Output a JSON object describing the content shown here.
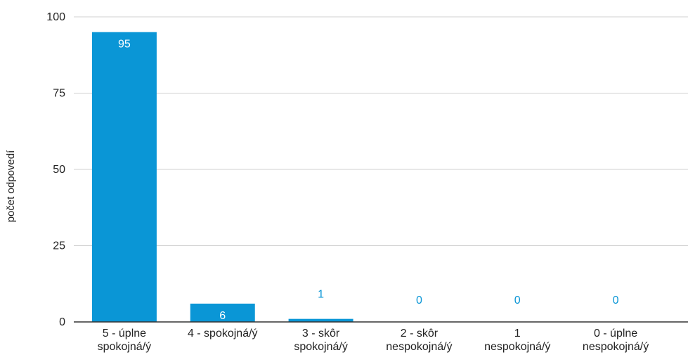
{
  "chart_data": {
    "type": "bar",
    "title": "",
    "xlabel": "",
    "ylabel": "počet odpovedí",
    "categories": [
      [
        "5 - úplne",
        "spokojná/ý"
      ],
      [
        "4 - spokojná/ý"
      ],
      [
        "3 - skôr",
        "spokojná/ý"
      ],
      [
        "2 - skôr",
        "nespokojná/ý"
      ],
      [
        "1",
        "nespokojná/ý"
      ],
      [
        "0 - úplne",
        "nespokojná/ý"
      ]
    ],
    "values": [
      95,
      6,
      1,
      0,
      0,
      0
    ],
    "data_labels": [
      "95",
      "6",
      "1",
      "0",
      "0",
      "0"
    ],
    "ylim": [
      0,
      100
    ],
    "yticks": [
      0,
      25,
      50,
      75,
      100
    ],
    "y_tick_labels": [
      "0",
      "25",
      "50",
      "75",
      "100"
    ],
    "grid": true,
    "legend": "none",
    "colors": {
      "bar": "#0a96d6",
      "grid": "#d0d0d0",
      "axis": "#333333",
      "text": "#222222"
    }
  }
}
